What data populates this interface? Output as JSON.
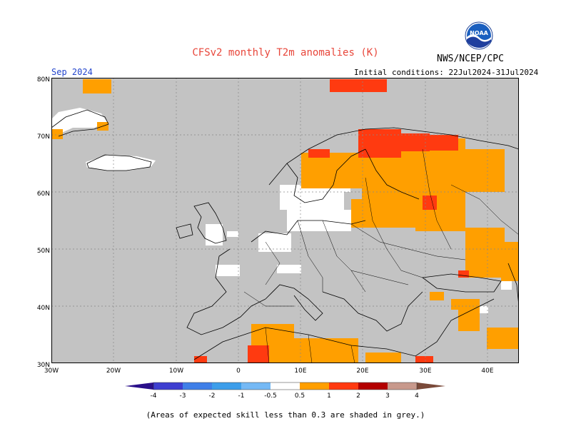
{
  "header": {
    "title": "CFSv2 monthly T2m anomalies (K)",
    "agency": "NWS/NCEP/CPC",
    "valid_month": "Sep 2024",
    "initial_conditions": "Initial conditions: 22Jul2024-31Jul2024"
  },
  "footnote": "(Areas of expected skill less than 0.3 are shaded in grey.)",
  "logo": {
    "icon": "noaa-logo-icon",
    "text": "NOAA"
  },
  "map": {
    "lat_labels": [
      "80N",
      "70N",
      "60N",
      "50N",
      "40N",
      "30N"
    ],
    "lon_labels": [
      "30W",
      "20W",
      "10W",
      "0",
      "10E",
      "20E",
      "30E",
      "40E"
    ],
    "extent": {
      "lon": [
        -30,
        45
      ],
      "lat": [
        30,
        80
      ]
    },
    "background_color": "#c3c3c3"
  },
  "colorbar": {
    "labels": [
      "-4",
      "-3",
      "-2",
      "-1",
      "-0.5",
      "0.5",
      "1",
      "2",
      "3",
      "4"
    ],
    "colors": [
      "#2a0f8a",
      "#3e3ed0",
      "#3f7fe8",
      "#3d9eea",
      "#75b9f5",
      "#ffffff",
      "#ff9f00",
      "#ff3a10",
      "#b30000",
      "#c8998c",
      "#7a4a3a"
    ]
  }
}
